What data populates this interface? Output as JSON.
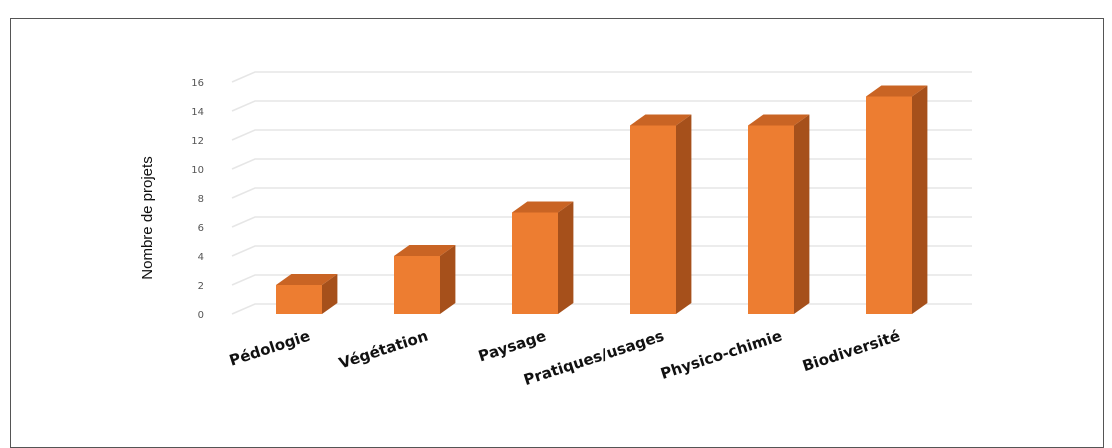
{
  "chart_data": {
    "type": "bar",
    "categories": [
      "Pédologie",
      "Végétation",
      "Paysage",
      "Pratiques/usages",
      "Physico-chimie",
      "Biodiversité"
    ],
    "values": [
      2,
      4,
      7,
      13,
      13,
      15
    ],
    "title": "",
    "xlabel": "",
    "ylabel": "Nombre de projets",
    "ylim": [
      0,
      16
    ],
    "yticks": [
      "0",
      "2",
      "4",
      "6",
      "8",
      "10",
      "12",
      "14",
      "16"
    ],
    "grid": true,
    "legend": "none",
    "bar_color": "#ED7D31",
    "bar_side_color": "#A6501B",
    "bar_top_color": "#C96424",
    "grid_color": "#E6E6E6"
  }
}
